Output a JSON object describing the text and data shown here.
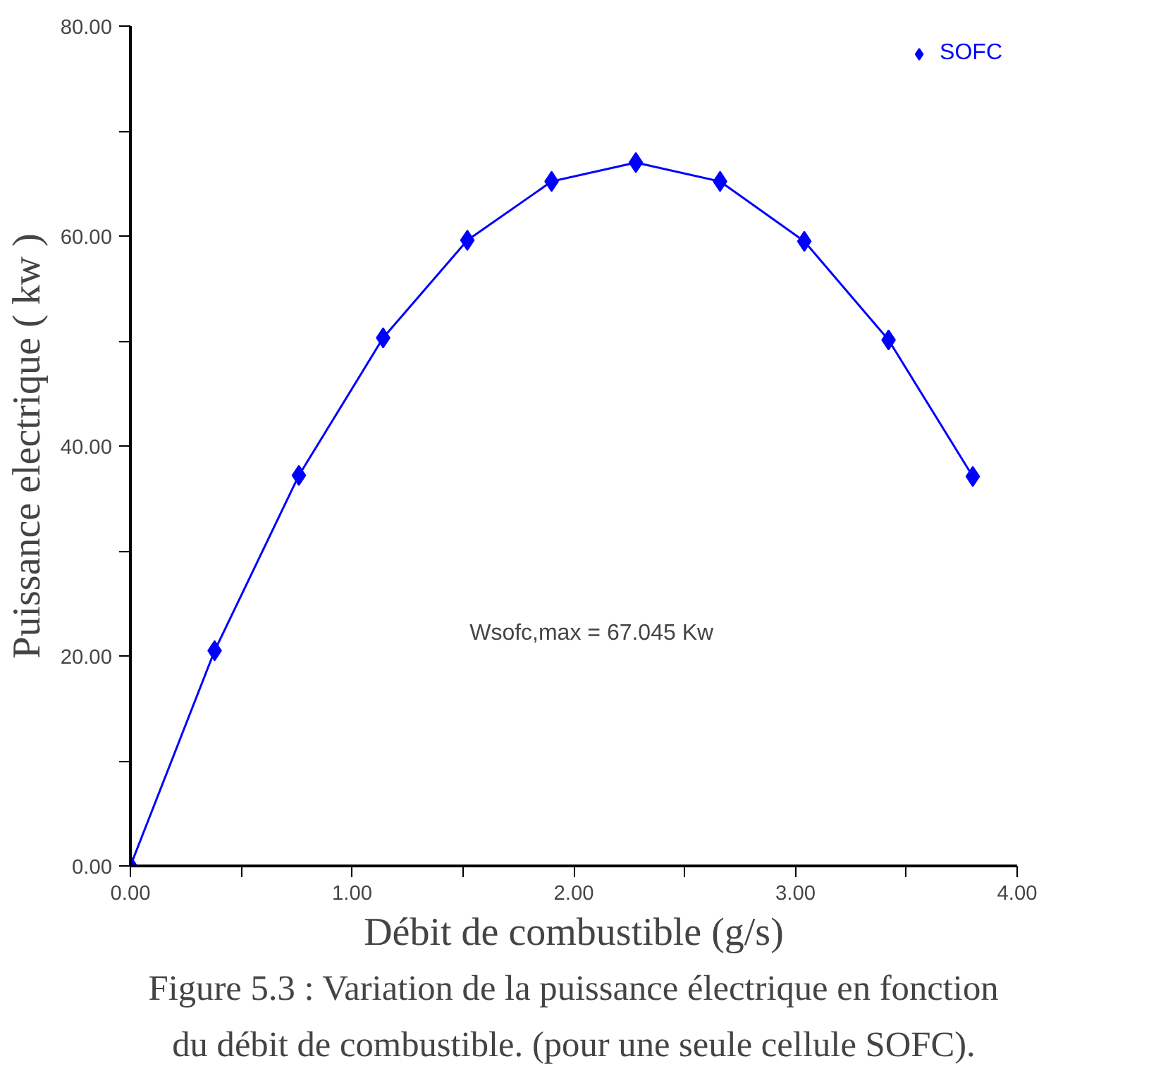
{
  "chart_data": {
    "type": "line",
    "xlabel": "Débit de combustible (g/s)",
    "ylabel": "Puissance electrique ( kw )",
    "x": [
      0,
      0.38,
      0.76,
      1.14,
      1.52,
      1.9,
      2.28,
      2.66,
      3.04,
      3.42,
      3.8
    ],
    "series": [
      {
        "name": "SOFC",
        "color": "#0000ff",
        "values": [
          0,
          20.5,
          37.2,
          50.3,
          59.6,
          65.2,
          67.0,
          65.2,
          59.5,
          50.1,
          37.1
        ]
      }
    ],
    "xlim": [
      0,
      4
    ],
    "ylim": [
      0,
      80
    ],
    "xticks": [
      {
        "value": 0,
        "label": "0.00"
      },
      {
        "value": 0.5,
        "label": null
      },
      {
        "value": 1,
        "label": "1.00"
      },
      {
        "value": 1.5,
        "label": null
      },
      {
        "value": 2,
        "label": "2.00"
      },
      {
        "value": 2.5,
        "label": null
      },
      {
        "value": 3,
        "label": "3.00"
      },
      {
        "value": 3.5,
        "label": null
      },
      {
        "value": 4,
        "label": "4.00"
      }
    ],
    "yticks": [
      {
        "value": 0,
        "label": "0.00"
      },
      {
        "value": 10,
        "label": null
      },
      {
        "value": 20,
        "label": "20.00"
      },
      {
        "value": 30,
        "label": null
      },
      {
        "value": 40,
        "label": "40.00"
      },
      {
        "value": 50,
        "label": null
      },
      {
        "value": 60,
        "label": "60.00"
      },
      {
        "value": 70,
        "label": null
      },
      {
        "value": 80,
        "label": "80.00"
      }
    ],
    "annotations": [
      "Wsofc,max = 67.045 Kw",
      "Figure 5.3 : Variation de la puissance électrique en fonction",
      "du débit de combustible. (pour une seule cellule SOFC)."
    ],
    "marker": "diamond",
    "line_style": "solid",
    "legend": "top right",
    "grid": false
  }
}
